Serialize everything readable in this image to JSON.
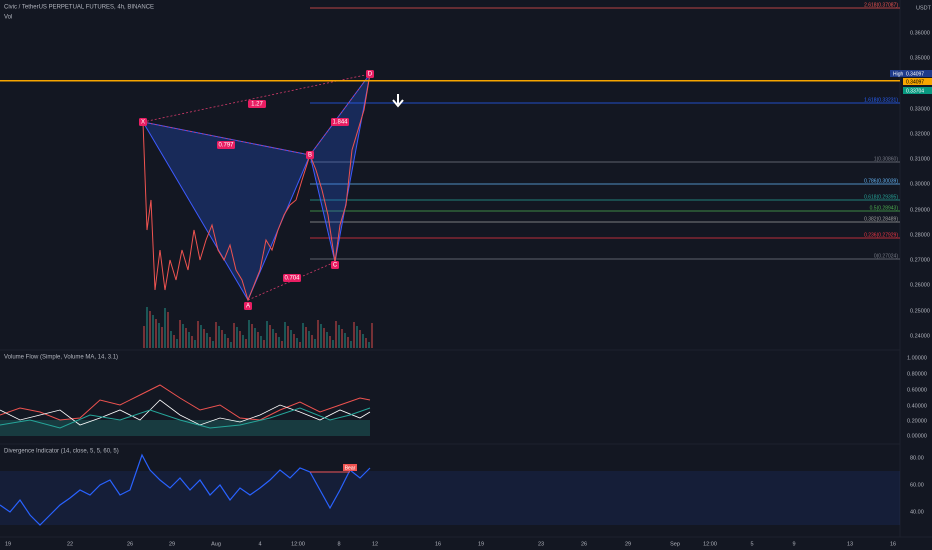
{
  "header": {
    "symbol": "Civic / TetherUS PERPETUAL FUTURES, 4h, BINANCE",
    "volume": "Vol",
    "currency": "USDT"
  },
  "price_axis": [
    "0.36000",
    "0.35000",
    "0.33000",
    "0.32000",
    "0.31000",
    "0.30000",
    "0.29000",
    "0.28000",
    "0.27000",
    "0.26000",
    "0.25000",
    "0.24000"
  ],
  "price_tags": {
    "high_label": "High",
    "high": "0.34097",
    "last_high": "0.34097",
    "current": "0.33704"
  },
  "fib_levels": [
    "2.618(0.37087)",
    "1.618(0.33231)",
    "1(0.30860)",
    "0.786(0.30039)",
    "0.618(0.29395)",
    "0.5(0.28943)",
    "0.382(0.28489)",
    "0.236(0.27929)",
    "0(0.27024)"
  ],
  "pattern": {
    "points": [
      "X",
      "A",
      "B",
      "C",
      "D"
    ],
    "ratios": [
      "1.27",
      "0.797",
      "1.844",
      "0.704"
    ]
  },
  "volume_flow": {
    "title": "Volume Flow (Simple, Volume MA, 14, 3.1)",
    "axis": [
      "1.00000",
      "0.80000",
      "0.60000",
      "0.40000",
      "0.20000",
      "0.00000"
    ]
  },
  "divergence": {
    "title": "Divergence Indicator (14, close, 5, 5, 60, 5)",
    "axis": [
      "80.00",
      "60.00",
      "40.00"
    ],
    "signal": "Bear"
  },
  "time_axis": [
    "19",
    "22",
    "26",
    "29",
    "Aug",
    "4",
    "12:00",
    "8",
    "12",
    "16",
    "19",
    "23",
    "26",
    "29",
    "Sep",
    "12:00",
    "5",
    "9",
    "13",
    "16"
  ]
}
